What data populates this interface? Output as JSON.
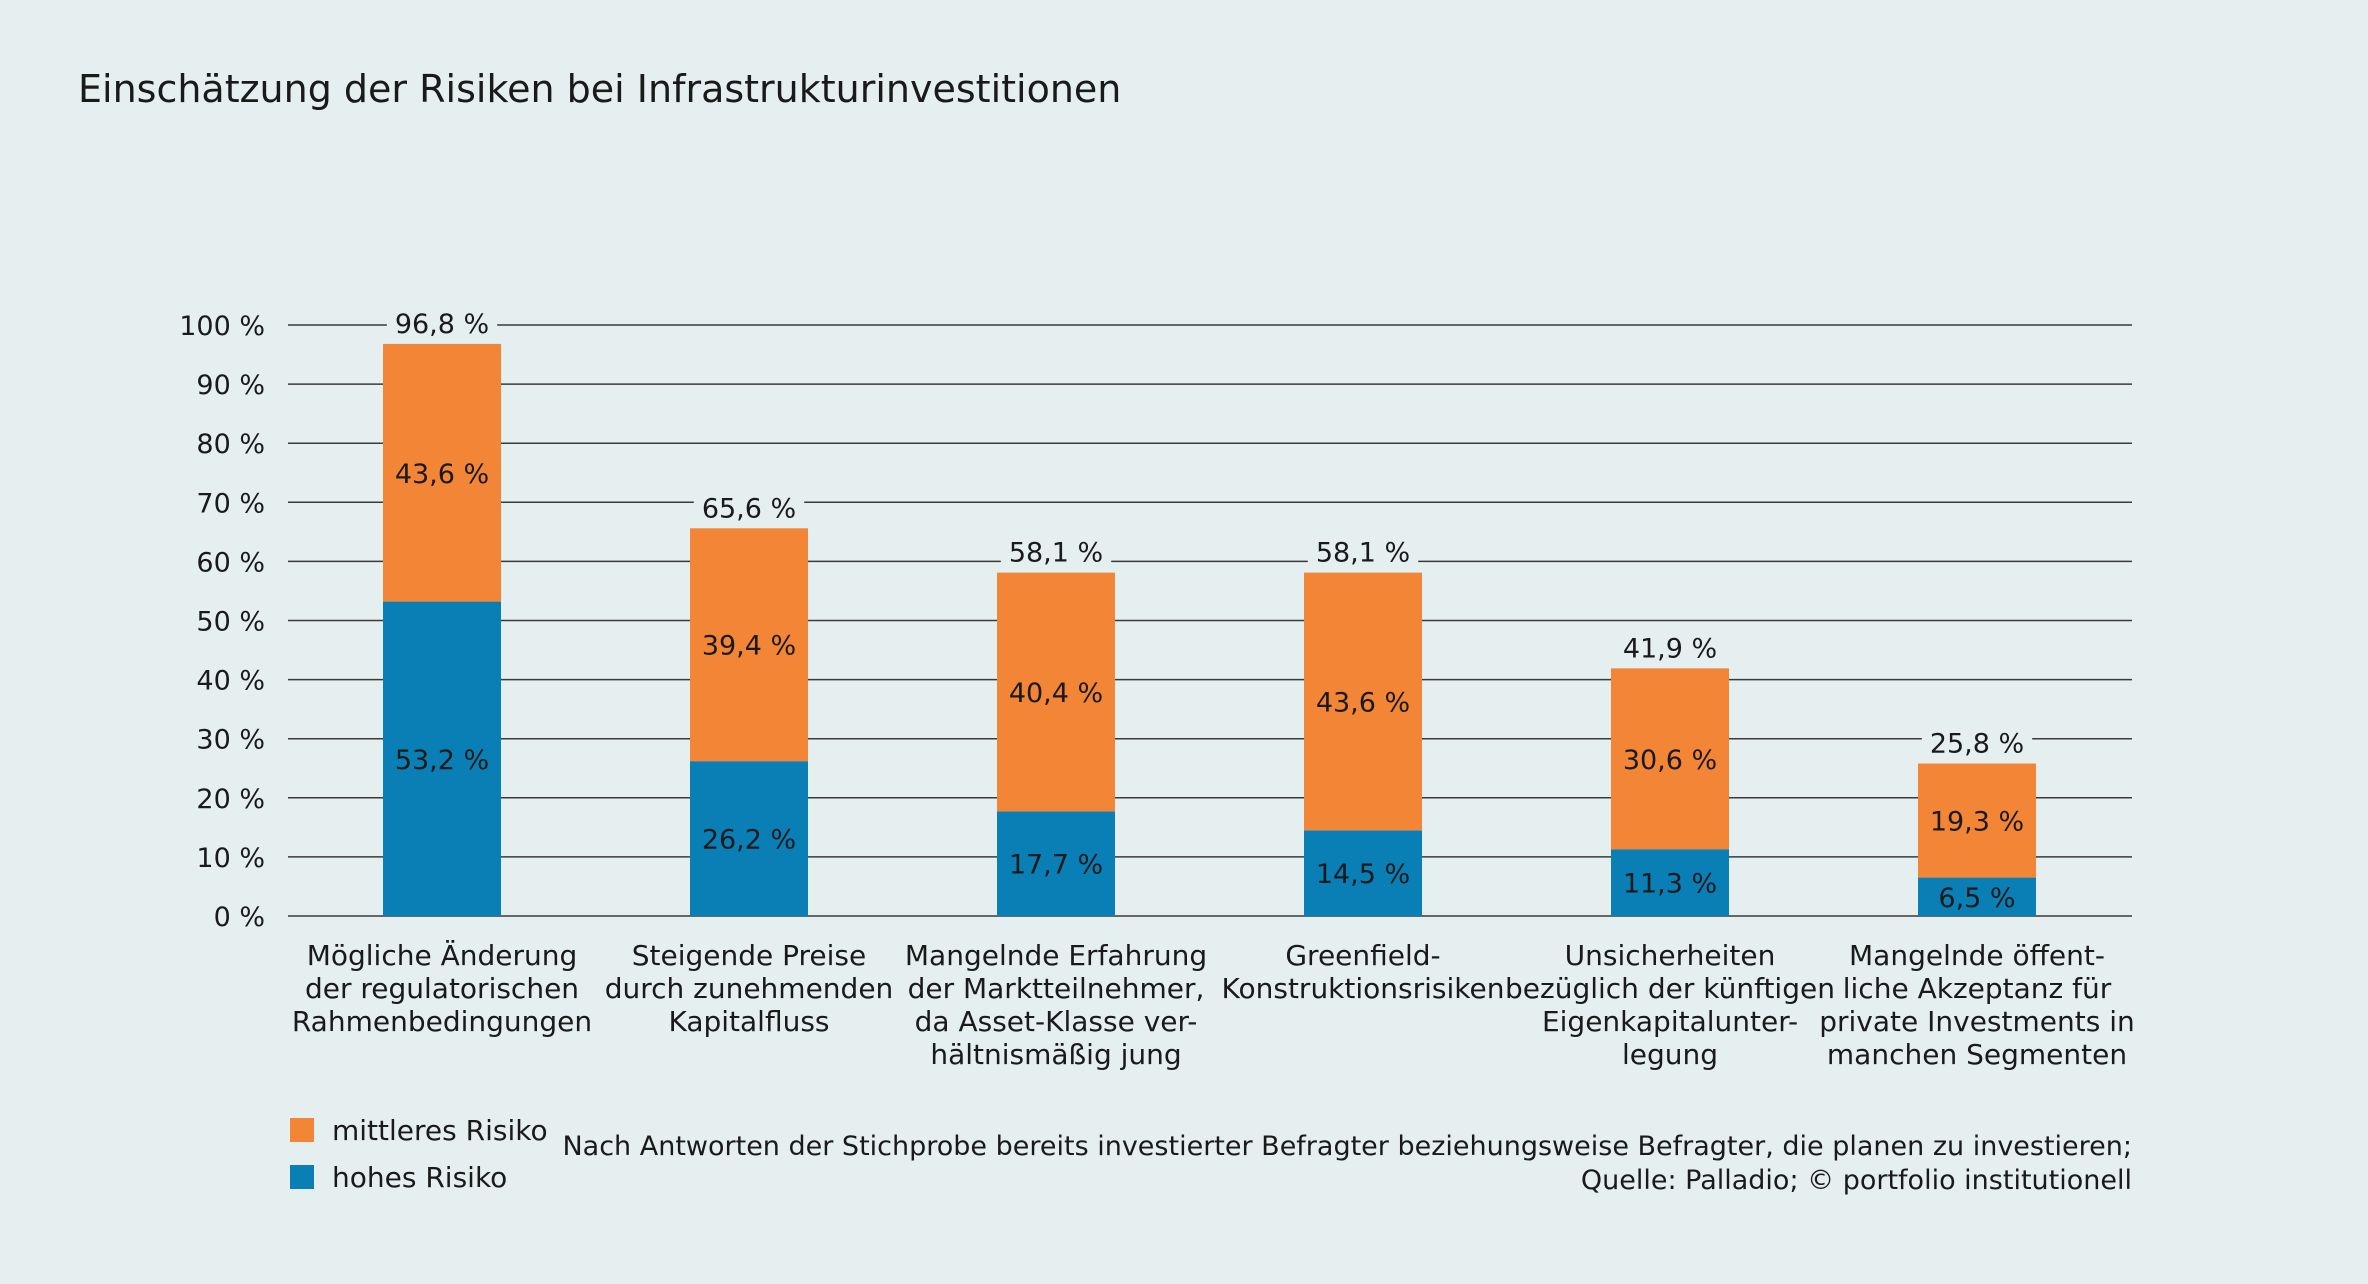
{
  "chart_data": {
    "type": "bar",
    "stacked": true,
    "title": "Einschätzung der Risiken bei Infrastrukturinvestitionen",
    "categories": [
      [
        "Mögliche Änderung",
        "der regulatorischen",
        "Rahmenbedingungen"
      ],
      [
        "Steigende Preise",
        "durch zunehmenden",
        "Kapitalfluss"
      ],
      [
        "Mangelnde Erfahrung",
        "der Marktteilnehmer,",
        "da Asset-Klasse ver-",
        "hältnismäßig jung"
      ],
      [
        "Greenfield-",
        "Konstruktionsrisiken"
      ],
      [
        "Unsicherheiten",
        "bezüglich der künftigen",
        "Eigenkapitalunter-",
        "legung"
      ],
      [
        "Mangelnde öffent-",
        "liche Akzeptanz für",
        "private Investments in",
        "manchen Segmenten"
      ]
    ],
    "series": [
      {
        "name": "hohes Risiko",
        "color": "#0a7fb5",
        "values": [
          53.2,
          26.2,
          17.7,
          14.5,
          11.3,
          6.5
        ],
        "labels": [
          "53,2 %",
          "26,2 %",
          "17,7 %",
          "14,5 %",
          "11,3 %",
          "6,5 %"
        ]
      },
      {
        "name": "mittleres Risiko",
        "color": "#f28536",
        "values": [
          43.6,
          39.4,
          40.4,
          43.6,
          30.6,
          19.3
        ],
        "labels": [
          "43,6 %",
          "39,4 %",
          "40,4 %",
          "43,6 %",
          "30,6 %",
          "19,3 %"
        ]
      }
    ],
    "totals": [
      96.8,
      65.6,
      58.1,
      58.1,
      41.9,
      25.8
    ],
    "total_labels": [
      "96,8 %",
      "65,6 %",
      "58,1 %",
      "58,1 %",
      "41,9 %",
      "25,8 %"
    ],
    "ylim": [
      0,
      100
    ],
    "yticks": [
      0,
      10,
      20,
      30,
      40,
      50,
      60,
      70,
      80,
      90,
      100
    ],
    "ytick_labels": [
      "0 %",
      "10 %",
      "20 %",
      "30 %",
      "40 %",
      "50 %",
      "60 %",
      "70 %",
      "80 %",
      "90 %",
      "100 %"
    ],
    "grid": true,
    "legend": {
      "position": "bottom-left",
      "order": [
        "mittleres Risiko",
        "hohes Risiko"
      ]
    },
    "note": [
      "Nach Antworten der Stichprobe bereits investierter Befragter beziehungsweise Befragter, die planen zu investieren;",
      "Quelle: Palladio; © portfolio institutionell"
    ]
  }
}
